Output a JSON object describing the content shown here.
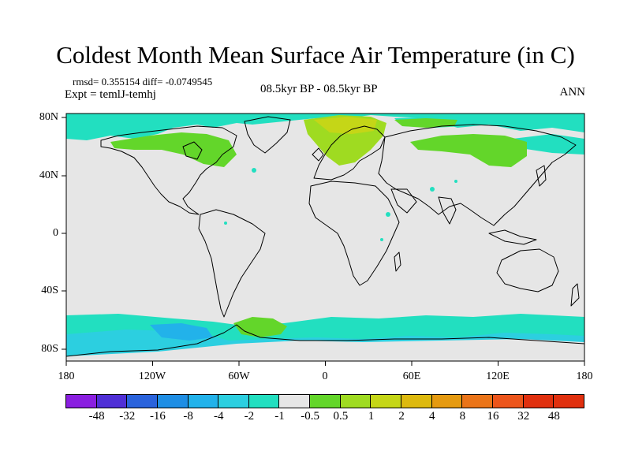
{
  "title": "Coldest Month Mean Surface Air Temperature (in C)",
  "stats": "rmsd= 0.355154 diff= -0.0749545",
  "experiment": "Expt = temlJ-temhj",
  "center_label": "08.5kyr BP - 08.5kyr BP",
  "season": "ANN",
  "lon_ticks": [
    "180",
    "120W",
    "60W",
    "0",
    "60E",
    "120E",
    "180"
  ],
  "lat_ticks": [
    "80N",
    "40N",
    "0",
    "40S",
    "80S"
  ],
  "legend": {
    "colors": [
      "#8a1fe0",
      "#4f2fd6",
      "#2a63dc",
      "#1f8ee4",
      "#22b2ea",
      "#2ccfe0",
      "#22dfc0",
      "#e6e6e6",
      "#63d62a",
      "#9fdb21",
      "#c5d617",
      "#ddb90e",
      "#e59a10",
      "#ea7418",
      "#ec551b",
      "#e0300f"
    ],
    "labels": [
      "-48",
      "-32",
      "-16",
      "-8",
      "-4",
      "-2",
      "-1",
      "-0.5",
      "0.5",
      "1",
      "2",
      "4",
      "8",
      "16",
      "32",
      "48"
    ],
    "label_fills": [
      "#8a1fe0",
      "#4f2fd6",
      "#2a63dc",
      "#1f8ee4",
      "#22b2ea",
      "#2ccfe0",
      "#22dfc0",
      "#e6e6e6",
      "#63d62a",
      "#9fdb21",
      "#c5d617",
      "#ddb90e",
      "#e59a10",
      "#ea7418",
      "#ec551b",
      "#e0300f"
    ]
  },
  "map": {
    "background_color": "#e6e6e6",
    "lon_range": [
      -180,
      180
    ],
    "lat_range": [
      -90,
      90
    ],
    "anomaly_regions": [
      {
        "name": "arctic-cool-band",
        "color": "#22dfc0",
        "level": "-1 to -0.5"
      },
      {
        "name": "north-america-warm-patch",
        "color": "#63d62a",
        "level": "0.5 to 1"
      },
      {
        "name": "scandinavia-warm-patch",
        "color": "#9fdb21",
        "level": "1 to 2"
      },
      {
        "name": "barents-warm-core",
        "color": "#c5d617",
        "level": "2 to 4"
      },
      {
        "name": "siberia-warm-patch",
        "color": "#63d62a",
        "level": "0.5 to 1"
      },
      {
        "name": "southern-ocean-cool-band",
        "color": "#22dfc0",
        "level": "-1 to -0.5"
      },
      {
        "name": "antarctic-coast-cool",
        "color": "#2ccfe0",
        "level": "-2 to -1"
      },
      {
        "name": "ross-sea-cool-core",
        "color": "#22b2ea",
        "level": "-4 to -2"
      },
      {
        "name": "weddell-warm-patch",
        "color": "#63d62a",
        "level": "0.5 to 1"
      }
    ]
  }
}
